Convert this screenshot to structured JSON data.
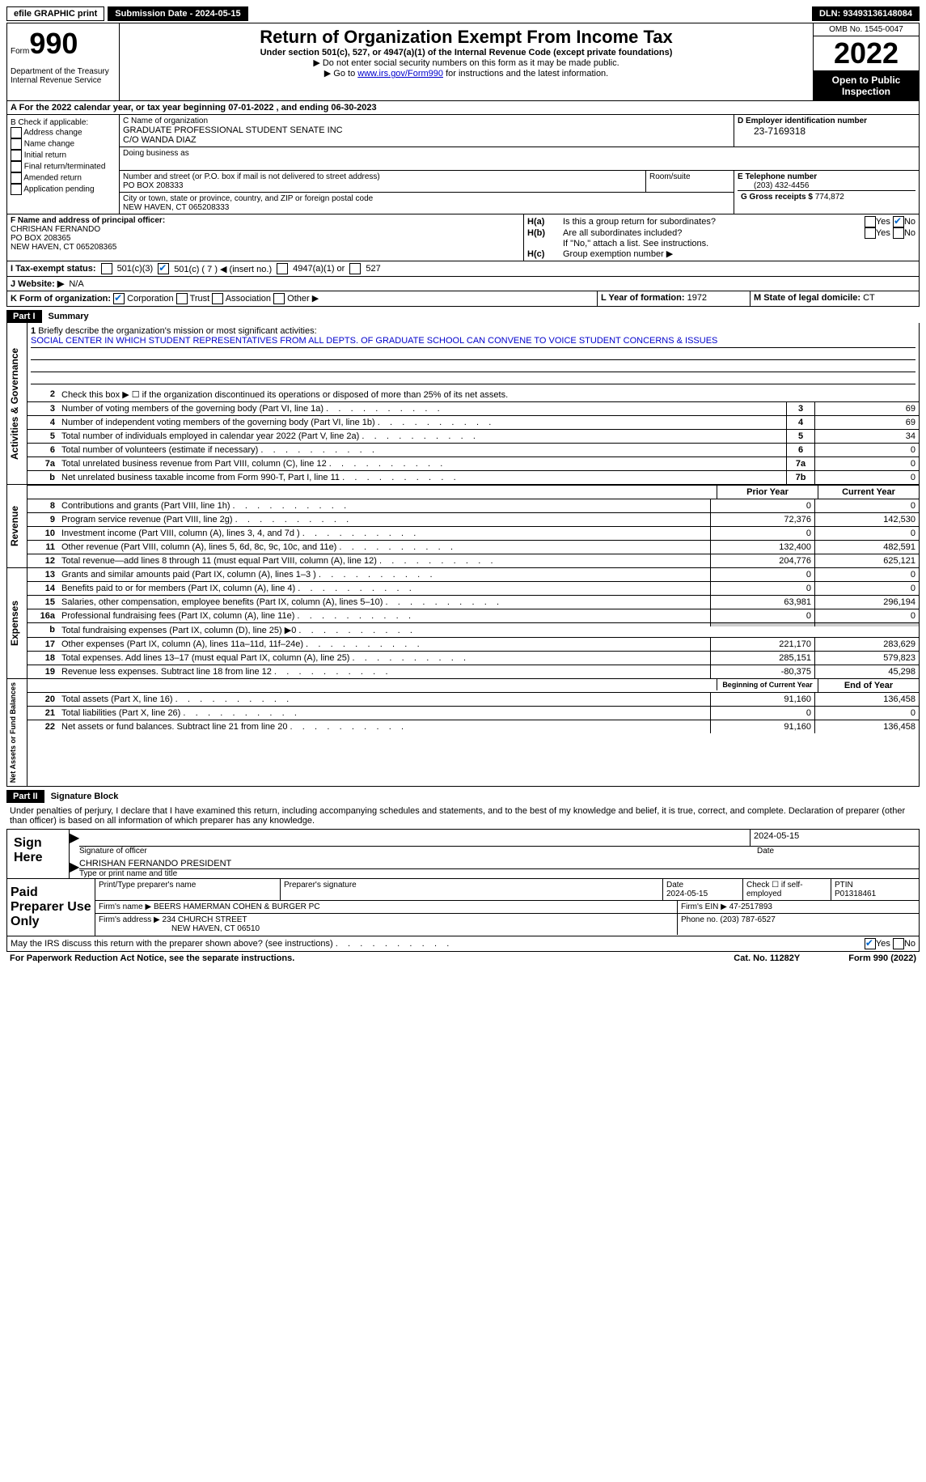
{
  "topbar": {
    "efile": "efile GRAPHIC print",
    "sub_label": "Submission Date - 2024-05-15",
    "dln": "DLN: 93493136148084"
  },
  "header": {
    "form_prefix": "Form",
    "form_num": "990",
    "title": "Return of Organization Exempt From Income Tax",
    "subtitle": "Under section 501(c), 527, or 4947(a)(1) of the Internal Revenue Code (except private foundations)",
    "note1": "▶ Do not enter social security numbers on this form as it may be made public.",
    "note2_pre": "▶ Go to ",
    "note2_link": "www.irs.gov/Form990",
    "note2_post": " for instructions and the latest information.",
    "dept": "Department of the Treasury\nInternal Revenue Service",
    "omb": "OMB No. 1545-0047",
    "year": "2022",
    "open": "Open to Public Inspection"
  },
  "rowA": "A For the 2022 calendar year, or tax year beginning 07-01-2022    , and ending 06-30-2023",
  "colB": {
    "title": "B Check if applicable:",
    "opts": [
      "Address change",
      "Name change",
      "Initial return",
      "Final return/terminated",
      "Amended return",
      "Application pending"
    ]
  },
  "colC": {
    "name_label": "C Name of organization",
    "name": "GRADUATE PROFESSIONAL STUDENT SENATE INC",
    "co": "C/O WANDA DIAZ",
    "dba_label": "Doing business as",
    "addr_label": "Number and street (or P.O. box if mail is not delivered to street address)",
    "addr": "PO BOX 208333",
    "room_label": "Room/suite",
    "city_label": "City or town, state or province, country, and ZIP or foreign postal code",
    "city": "NEW HAVEN, CT  065208333"
  },
  "colD": {
    "label": "D Employer identification number",
    "val": "23-7169318"
  },
  "colE": {
    "label": "E Telephone number",
    "val": "(203) 432-4456"
  },
  "colG": {
    "label": "G Gross receipts $",
    "val": "774,872"
  },
  "colF": {
    "label": "F Name and address of principal officer:",
    "name": "CHRISHAN FERNANDO",
    "addr": "PO BOX 208365",
    "city": "NEW HAVEN, CT  065208365"
  },
  "colH": {
    "a_label": "Is this a group return for subordinates?",
    "b_label": "Are all subordinates included?",
    "b_note": "If \"No,\" attach a list. See instructions.",
    "c_label": "Group exemption number ▶"
  },
  "rowI": {
    "label": "I   Tax-exempt status:",
    "opt1": "501(c)(3)",
    "opt2": "501(c) ( 7 ) ◀ (insert no.)",
    "opt3": "4947(a)(1) or",
    "opt4": "527"
  },
  "rowJ": {
    "label": "J   Website: ▶",
    "val": "N/A"
  },
  "rowK": {
    "label": "K Form of organization:",
    "opts": [
      "Corporation",
      "Trust",
      "Association",
      "Other ▶"
    ]
  },
  "rowL": {
    "label": "L Year of formation:",
    "val": "1972"
  },
  "rowM": {
    "label": "M State of legal domicile:",
    "val": "CT"
  },
  "part1": {
    "hdr": "Part I",
    "title": "Summary",
    "mission_label": "Briefly describe the organization's mission or most significant activities:",
    "mission": "SOCIAL CENTER IN WHICH STUDENT REPRESENTATIVES FROM ALL DEPTS. OF GRADUATE SCHOOL CAN CONVENE TO VOICE STUDENT CONCERNS & ISSUES",
    "line2": "Check this box ▶ ☐ if the organization discontinued its operations or disposed of more than 25% of its net assets.",
    "gov": {
      "label": "Activities & Governance",
      "rows": [
        {
          "n": "3",
          "t": "Number of voting members of the governing body (Part VI, line 1a)",
          "box": "3",
          "v": "69"
        },
        {
          "n": "4",
          "t": "Number of independent voting members of the governing body (Part VI, line 1b)",
          "box": "4",
          "v": "69"
        },
        {
          "n": "5",
          "t": "Total number of individuals employed in calendar year 2022 (Part V, line 2a)",
          "box": "5",
          "v": "34"
        },
        {
          "n": "6",
          "t": "Total number of volunteers (estimate if necessary)",
          "box": "6",
          "v": "0"
        },
        {
          "n": "7a",
          "t": "Total unrelated business revenue from Part VIII, column (C), line 12",
          "box": "7a",
          "v": "0"
        },
        {
          "n": "b",
          "t": "Net unrelated business taxable income from Form 990-T, Part I, line 11",
          "box": "7b",
          "v": "0"
        }
      ]
    },
    "py_hdr": "Prior Year",
    "cy_hdr": "Current Year",
    "rev": {
      "label": "Revenue",
      "rows": [
        {
          "n": "8",
          "t": "Contributions and grants (Part VIII, line 1h)",
          "py": "0",
          "cy": "0"
        },
        {
          "n": "9",
          "t": "Program service revenue (Part VIII, line 2g)",
          "py": "72,376",
          "cy": "142,530"
        },
        {
          "n": "10",
          "t": "Investment income (Part VIII, column (A), lines 3, 4, and 7d )",
          "py": "0",
          "cy": "0"
        },
        {
          "n": "11",
          "t": "Other revenue (Part VIII, column (A), lines 5, 6d, 8c, 9c, 10c, and 11e)",
          "py": "132,400",
          "cy": "482,591"
        },
        {
          "n": "12",
          "t": "Total revenue—add lines 8 through 11 (must equal Part VIII, column (A), line 12)",
          "py": "204,776",
          "cy": "625,121"
        }
      ]
    },
    "exp": {
      "label": "Expenses",
      "rows": [
        {
          "n": "13",
          "t": "Grants and similar amounts paid (Part IX, column (A), lines 1–3 )",
          "py": "0",
          "cy": "0"
        },
        {
          "n": "14",
          "t": "Benefits paid to or for members (Part IX, column (A), line 4)",
          "py": "0",
          "cy": "0"
        },
        {
          "n": "15",
          "t": "Salaries, other compensation, employee benefits (Part IX, column (A), lines 5–10)",
          "py": "63,981",
          "cy": "296,194"
        },
        {
          "n": "16a",
          "t": "Professional fundraising fees (Part IX, column (A), line 11e)",
          "py": "0",
          "cy": "0"
        },
        {
          "n": "b",
          "t": "Total fundraising expenses (Part IX, column (D), line 25) ▶0",
          "py": "",
          "cy": "",
          "shaded": true
        },
        {
          "n": "17",
          "t": "Other expenses (Part IX, column (A), lines 11a–11d, 11f–24e)",
          "py": "221,170",
          "cy": "283,629"
        },
        {
          "n": "18",
          "t": "Total expenses. Add lines 13–17 (must equal Part IX, column (A), line 25)",
          "py": "285,151",
          "cy": "579,823"
        },
        {
          "n": "19",
          "t": "Revenue less expenses. Subtract line 18 from line 12",
          "py": "-80,375",
          "cy": "45,298"
        }
      ]
    },
    "boy_hdr": "Beginning of Current Year",
    "eoy_hdr": "End of Year",
    "net": {
      "label": "Net Assets or Fund Balances",
      "rows": [
        {
          "n": "20",
          "t": "Total assets (Part X, line 16)",
          "py": "91,160",
          "cy": "136,458"
        },
        {
          "n": "21",
          "t": "Total liabilities (Part X, line 26)",
          "py": "0",
          "cy": "0"
        },
        {
          "n": "22",
          "t": "Net assets or fund balances. Subtract line 21 from line 20",
          "py": "91,160",
          "cy": "136,458"
        }
      ]
    }
  },
  "part2": {
    "hdr": "Part II",
    "title": "Signature Block",
    "decl": "Under penalties of perjury, I declare that I have examined this return, including accompanying schedules and statements, and to the best of my knowledge and belief, it is true, correct, and complete. Declaration of preparer (other than officer) is based on all information of which preparer has any knowledge.",
    "sign_here": "Sign Here",
    "sig_officer": "Signature of officer",
    "sig_date": "2024-05-15",
    "date_label": "Date",
    "officer_name": "CHRISHAN FERNANDO PRESIDENT",
    "type_name": "Type or print name and title",
    "paid_label": "Paid Preparer Use Only",
    "prep_name_label": "Print/Type preparer's name",
    "prep_sig_label": "Preparer's signature",
    "prep_date": "2024-05-15",
    "check_if": "Check ☐ if self-employed",
    "ptin_label": "PTIN",
    "ptin": "P01318461",
    "firm_name_label": "Firm's name    ▶",
    "firm_name": "BEERS HAMERMAN COHEN & BURGER PC",
    "firm_ein_label": "Firm's EIN ▶",
    "firm_ein": "47-2517893",
    "firm_addr_label": "Firm's address ▶",
    "firm_addr": "234 CHURCH STREET",
    "firm_city": "NEW HAVEN, CT  06510",
    "phone_label": "Phone no.",
    "phone": "(203) 787-6527",
    "discuss": "May the IRS discuss this return with the preparer shown above? (see instructions)"
  },
  "footer": {
    "left": "For Paperwork Reduction Act Notice, see the separate instructions.",
    "mid": "Cat. No. 11282Y",
    "right": "Form 990 (2022)"
  }
}
